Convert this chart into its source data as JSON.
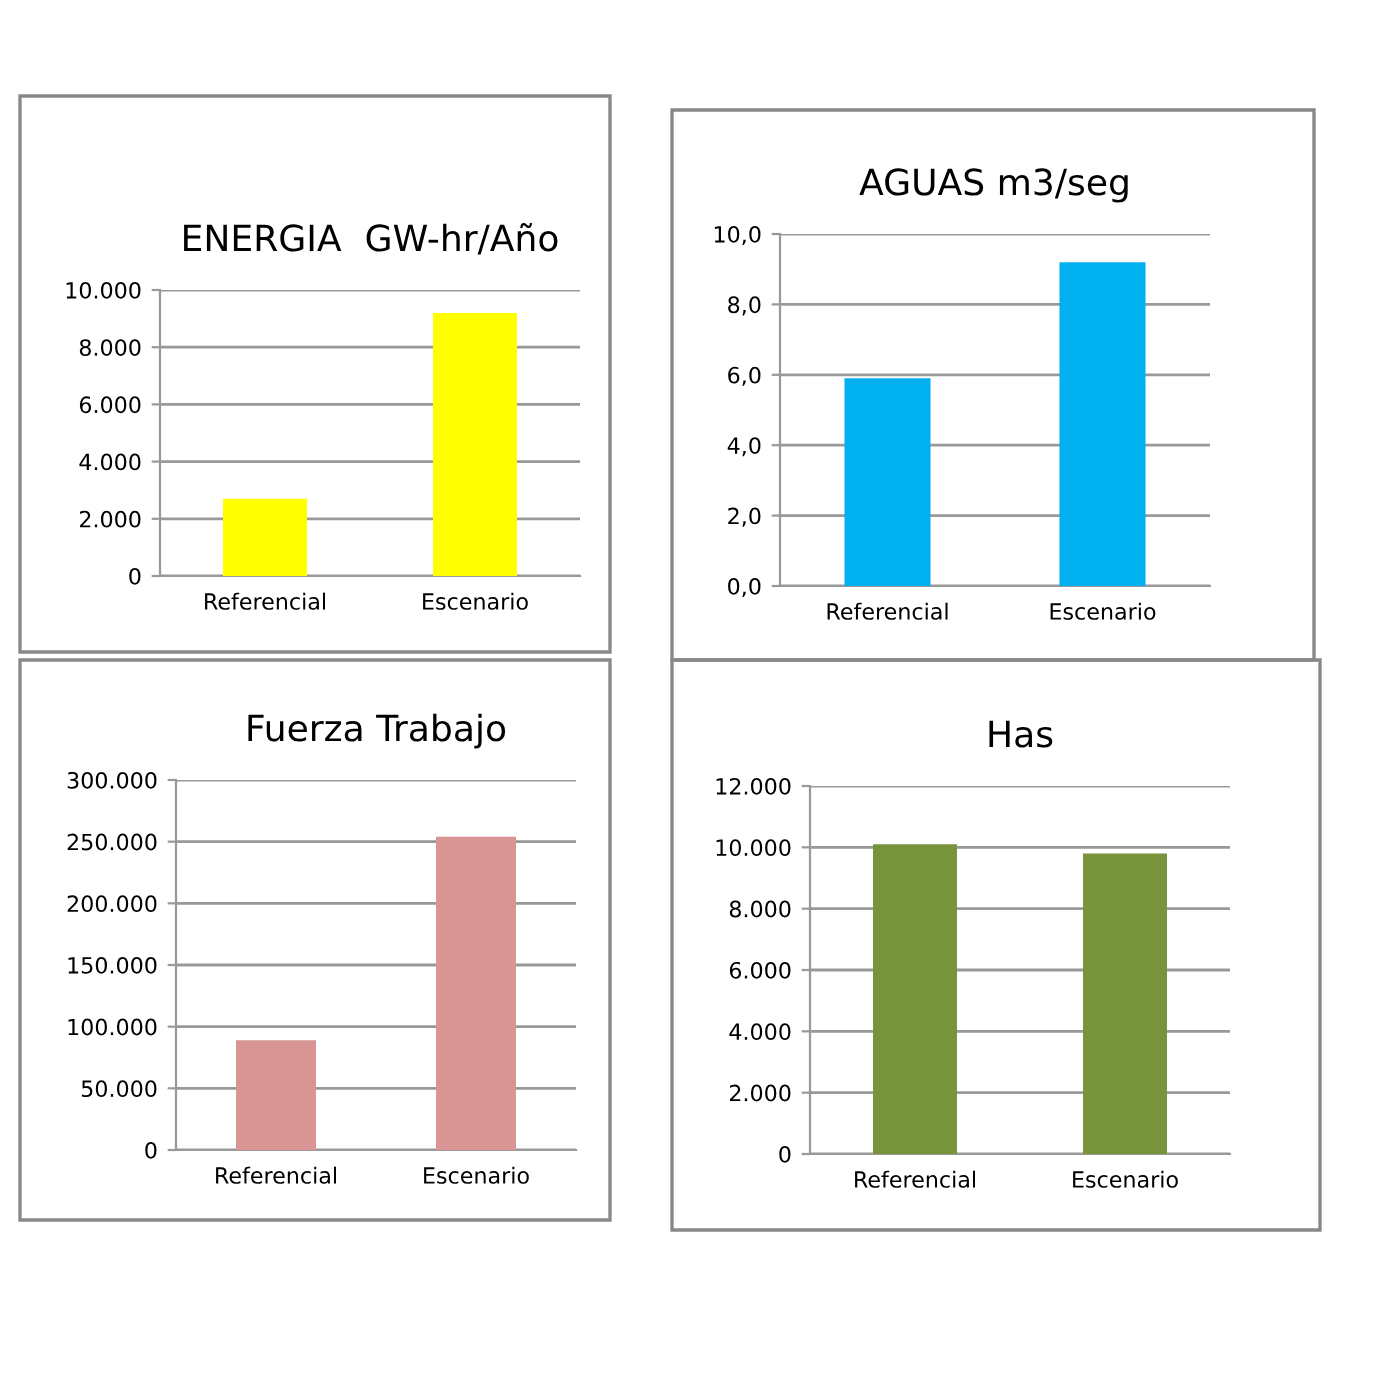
{
  "chart_data": [
    {
      "type": "bar",
      "title": "ENERGIA  GW-hr/Año",
      "categories": [
        "Referencial",
        "Escenario"
      ],
      "values": [
        2700,
        9200
      ],
      "color": "#ffff00",
      "ylim": [
        0,
        10000
      ],
      "yticks": [
        {
          "value": 0,
          "label": "0"
        },
        {
          "value": 2000,
          "label": "2.000"
        },
        {
          "value": 4000,
          "label": "4.000"
        },
        {
          "value": 6000,
          "label": "6.000"
        },
        {
          "value": 8000,
          "label": "8.000"
        },
        {
          "value": 10000,
          "label": "10.000"
        }
      ],
      "grid": "y"
    },
    {
      "type": "bar",
      "title": "AGUAS m3/seg",
      "categories": [
        "Referencial",
        "Escenario"
      ],
      "values": [
        5.9,
        9.2
      ],
      "color": "#00b0f0",
      "ylim": [
        0,
        10
      ],
      "yticks": [
        {
          "value": 0,
          "label": "0,0"
        },
        {
          "value": 2,
          "label": "2,0"
        },
        {
          "value": 4,
          "label": "4,0"
        },
        {
          "value": 6,
          "label": "6,0"
        },
        {
          "value": 8,
          "label": "8,0"
        },
        {
          "value": 10,
          "label": "10,0"
        }
      ],
      "grid": "y"
    },
    {
      "type": "bar",
      "title": "Fuerza Trabajo",
      "categories": [
        "Referencial",
        "Escenario"
      ],
      "values": [
        89000,
        254000
      ],
      "color": "#d99594",
      "ylim": [
        0,
        300000
      ],
      "yticks": [
        {
          "value": 0,
          "label": "0"
        },
        {
          "value": 50000,
          "label": "50.000"
        },
        {
          "value": 100000,
          "label": "100.000"
        },
        {
          "value": 150000,
          "label": "150.000"
        },
        {
          "value": 200000,
          "label": "200.000"
        },
        {
          "value": 250000,
          "label": "250.000"
        },
        {
          "value": 300000,
          "label": "300.000"
        }
      ],
      "grid": "y"
    },
    {
      "type": "bar",
      "title": "Has",
      "categories": [
        "Referencial",
        "Escenario"
      ],
      "values": [
        10100,
        9800
      ],
      "color": "#77933c",
      "ylim": [
        0,
        12000
      ],
      "yticks": [
        {
          "value": 0,
          "label": "0"
        },
        {
          "value": 2000,
          "label": "2.000"
        },
        {
          "value": 4000,
          "label": "4.000"
        },
        {
          "value": 6000,
          "label": "6.000"
        },
        {
          "value": 8000,
          "label": "8.000"
        },
        {
          "value": 10000,
          "label": "10.000"
        },
        {
          "value": 12000,
          "label": "12.000"
        }
      ],
      "grid": "y"
    }
  ]
}
